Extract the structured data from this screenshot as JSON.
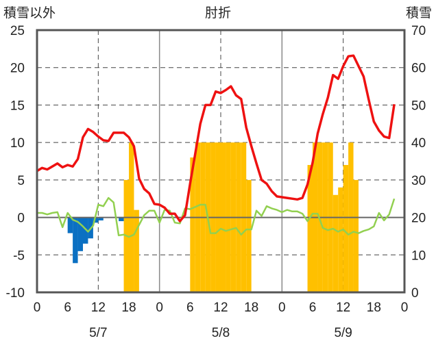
{
  "chart_data": {
    "type": "bar+line",
    "title_left": "積雪以外",
    "title_center": "肘折",
    "title_right": "積雪",
    "left_axis": {
      "range": [
        -10,
        25
      ],
      "ticks": [
        "25",
        "20",
        "15",
        "10",
        "5",
        "0",
        "-5",
        "-10"
      ]
    },
    "right_axis": {
      "range": [
        0,
        70
      ],
      "ticks": [
        "70",
        "60",
        "50",
        "40",
        "30",
        "20",
        "10",
        "0"
      ]
    },
    "x_axis": {
      "range_hours": [
        0,
        72
      ],
      "tick_labels": [
        "0",
        "6",
        "12",
        "18",
        "0",
        "6",
        "12",
        "18",
        "0",
        "6",
        "12",
        "18",
        "0"
      ],
      "date_labels": [
        "5/7",
        "5/8",
        "5/9"
      ]
    },
    "colors": {
      "negative_bars": "#0b70c2",
      "snow_bars": "#ffc000",
      "red_line": "#ee1111",
      "green_line": "#92d050",
      "axes": "#555555",
      "grid": "#444444"
    },
    "negative_bars": [
      {
        "hour": 7,
        "value": -2.1
      },
      {
        "hour": 8,
        "value": -6.1
      },
      {
        "hour": 9,
        "value": -4.5
      },
      {
        "hour": 10,
        "value": -3.5
      },
      {
        "hour": 11,
        "value": -2.8
      },
      {
        "hour": 12,
        "value": -0.7
      },
      {
        "hour": 13,
        "value": -0.4
      },
      {
        "hour": 17,
        "value": -0.5
      }
    ],
    "snow_bars": [
      {
        "hour": 18,
        "value": 30
      },
      {
        "hour": 19,
        "value": 40
      },
      {
        "hour": 20,
        "value": 22
      },
      {
        "hour": 31,
        "value": 36
      },
      {
        "hour": 32,
        "value": 40
      },
      {
        "hour": 33,
        "value": 40
      },
      {
        "hour": 34,
        "value": 40
      },
      {
        "hour": 35,
        "value": 40
      },
      {
        "hour": 36,
        "value": 40
      },
      {
        "hour": 37,
        "value": 40
      },
      {
        "hour": 38,
        "value": 40
      },
      {
        "hour": 39,
        "value": 40
      },
      {
        "hour": 40,
        "value": 40
      },
      {
        "hour": 41,
        "value": 40
      },
      {
        "hour": 42,
        "value": 30
      },
      {
        "hour": 54,
        "value": 34
      },
      {
        "hour": 55,
        "value": 40
      },
      {
        "hour": 56,
        "value": 40
      },
      {
        "hour": 57,
        "value": 40
      },
      {
        "hour": 58,
        "value": 40
      },
      {
        "hour": 59,
        "value": 26
      },
      {
        "hour": 60,
        "value": 28
      },
      {
        "hour": 61,
        "value": 34
      },
      {
        "hour": 62,
        "value": 40
      },
      {
        "hour": 63,
        "value": 30
      }
    ],
    "red_series": [
      [
        0,
        6.2
      ],
      [
        1,
        6.6
      ],
      [
        2,
        6.4
      ],
      [
        3,
        6.8
      ],
      [
        4,
        7.2
      ],
      [
        5,
        6.7
      ],
      [
        6,
        7.0
      ],
      [
        7,
        6.8
      ],
      [
        8,
        7.8
      ],
      [
        9,
        10.7
      ],
      [
        10,
        11.8
      ],
      [
        11,
        11.4
      ],
      [
        12,
        10.8
      ],
      [
        13,
        10.3
      ],
      [
        14,
        10.2
      ],
      [
        15,
        11.3
      ],
      [
        16,
        11.3
      ],
      [
        17,
        11.3
      ],
      [
        18,
        10.7
      ],
      [
        19,
        9.5
      ],
      [
        20,
        5.2
      ],
      [
        21,
        3.8
      ],
      [
        22,
        3.2
      ],
      [
        23,
        1.8
      ],
      [
        24,
        1.7
      ],
      [
        25,
        1.3
      ],
      [
        26,
        0.5
      ],
      [
        27,
        0.5
      ],
      [
        28,
        -0.5
      ],
      [
        29,
        0.3
      ],
      [
        30,
        4.5
      ],
      [
        31,
        8.5
      ],
      [
        32,
        12.5
      ],
      [
        33,
        15.0
      ],
      [
        34,
        15.0
      ],
      [
        35,
        16.8
      ],
      [
        36,
        16.6
      ],
      [
        37,
        17.0
      ],
      [
        38,
        17.5
      ],
      [
        39,
        16.3
      ],
      [
        40,
        15.8
      ],
      [
        41,
        12.0
      ],
      [
        42,
        9.5
      ],
      [
        43,
        7.2
      ],
      [
        44,
        5.0
      ],
      [
        45,
        4.5
      ],
      [
        46,
        3.5
      ],
      [
        47,
        2.8
      ],
      [
        48,
        2.7
      ],
      [
        49,
        2.6
      ],
      [
        50,
        2.5
      ],
      [
        51,
        2.4
      ],
      [
        52,
        2.6
      ],
      [
        53,
        4.4
      ],
      [
        54,
        7.3
      ],
      [
        55,
        11.2
      ],
      [
        56,
        13.8
      ],
      [
        57,
        16.0
      ],
      [
        58,
        19.0
      ],
      [
        59,
        18.5
      ],
      [
        60,
        20.2
      ],
      [
        61,
        21.5
      ],
      [
        62,
        21.6
      ],
      [
        63,
        20.2
      ],
      [
        64,
        18.8
      ],
      [
        65,
        15.7
      ],
      [
        66,
        12.8
      ],
      [
        67,
        11.6
      ],
      [
        68,
        10.8
      ],
      [
        69,
        10.6
      ],
      [
        70,
        15.1
      ]
    ],
    "green_series": [
      [
        0,
        0.6
      ],
      [
        1,
        0.6
      ],
      [
        2,
        0.4
      ],
      [
        3,
        0.6
      ],
      [
        4,
        0.7
      ],
      [
        5,
        -1.3
      ],
      [
        6,
        0.6
      ],
      [
        7,
        -0.3
      ],
      [
        8,
        -0.6
      ],
      [
        9,
        -1.2
      ],
      [
        10,
        -1.9
      ],
      [
        11,
        -1.1
      ],
      [
        12,
        1.7
      ],
      [
        13,
        1.5
      ],
      [
        14,
        2.6
      ],
      [
        15,
        2.0
      ],
      [
        16,
        -2.4
      ],
      [
        17,
        -2.3
      ],
      [
        18,
        -2.6
      ],
      [
        19,
        -2.3
      ],
      [
        20,
        -1.0
      ],
      [
        21,
        0.3
      ],
      [
        22,
        0.9
      ],
      [
        23,
        0.9
      ],
      [
        24,
        -0.7
      ],
      [
        25,
        1.0
      ],
      [
        26,
        0.9
      ],
      [
        27,
        -0.7
      ],
      [
        28,
        -0.8
      ],
      [
        29,
        1.2
      ],
      [
        30,
        1.1
      ],
      [
        31,
        1.4
      ],
      [
        32,
        1.7
      ],
      [
        33,
        1.7
      ],
      [
        34,
        -2.1
      ],
      [
        35,
        -2.1
      ],
      [
        36,
        -1.5
      ],
      [
        37,
        -1.8
      ],
      [
        38,
        -1.6
      ],
      [
        39,
        -1.4
      ],
      [
        40,
        -2.3
      ],
      [
        41,
        -1.6
      ],
      [
        42,
        -1.6
      ],
      [
        43,
        0.9
      ],
      [
        44,
        0.2
      ],
      [
        45,
        1.5
      ],
      [
        46,
        1.2
      ],
      [
        47,
        1.0
      ],
      [
        48,
        0.7
      ],
      [
        49,
        1.0
      ],
      [
        50,
        0.8
      ],
      [
        51,
        0.8
      ],
      [
        52,
        0.5
      ],
      [
        53,
        -0.5
      ],
      [
        54,
        0.5
      ],
      [
        55,
        0.5
      ],
      [
        56,
        -1.4
      ],
      [
        57,
        -1.7
      ],
      [
        58,
        -1.5
      ],
      [
        59,
        -1.9
      ],
      [
        60,
        -1.6
      ],
      [
        61,
        -2.3
      ],
      [
        62,
        -1.9
      ],
      [
        63,
        -2.1
      ],
      [
        64,
        -1.8
      ],
      [
        65,
        -1.6
      ],
      [
        66,
        -1.2
      ],
      [
        67,
        0.6
      ],
      [
        68,
        -0.4
      ],
      [
        69,
        0.4
      ],
      [
        70,
        2.5
      ]
    ]
  }
}
